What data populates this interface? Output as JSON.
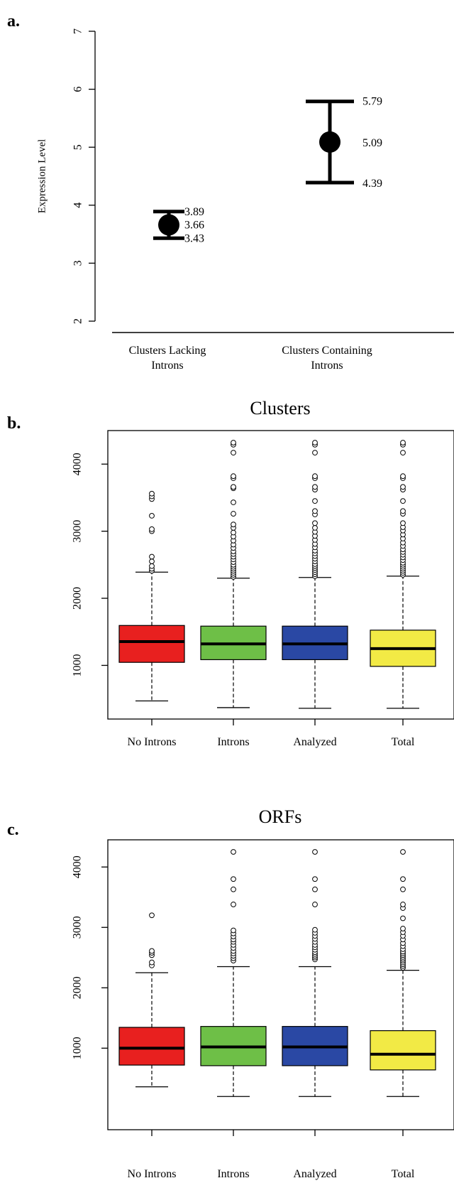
{
  "chart_data": [
    {
      "panel_label": "a.",
      "type": "scatter",
      "title": "",
      "xlabel": "",
      "ylabel": "Expression Level",
      "ylim": [
        2,
        7
      ],
      "yticks": [
        "2",
        "3",
        "4",
        "5",
        "6",
        "7"
      ],
      "categories": [
        [
          "Clusters Lacking",
          "Introns"
        ],
        [
          "Clusters Containing",
          "Introns"
        ]
      ],
      "points": [
        {
          "mean": 3.66,
          "lower": 3.43,
          "upper": 3.89,
          "labels": {
            "upper": "3.89",
            "mean": "3.66",
            "lower": "3.43"
          }
        },
        {
          "mean": 5.09,
          "lower": 4.39,
          "upper": 5.79,
          "labels": {
            "upper": "5.79",
            "mean": "5.09",
            "lower": "4.39"
          }
        }
      ],
      "grid": false,
      "legend": "none"
    },
    {
      "panel_label": "b.",
      "type": "boxplot",
      "title": "Clusters",
      "xlabel": "",
      "ylabel": "",
      "ylim": [
        200,
        4500
      ],
      "yticks": [
        "1000",
        "2000",
        "3000",
        "4000"
      ],
      "categories": [
        "No Introns",
        "Introns",
        "Analyzed",
        "Total"
      ],
      "colors": [
        "#e8201f",
        "#6ebf47",
        "#2a48a4",
        "#f2ea45"
      ],
      "boxes": [
        {
          "whisker_low": 470,
          "q1": 1045,
          "median": 1355,
          "q3": 1595,
          "whisker_high": 2390,
          "outliers": [
            2410,
            2440,
            2480,
            2550,
            2620,
            3000,
            3030,
            3230,
            3480,
            3520,
            3560
          ]
        },
        {
          "whisker_low": 370,
          "q1": 1085,
          "median": 1320,
          "q3": 1585,
          "whisker_high": 2300,
          "outliers": [
            2320,
            2350,
            2380,
            2410,
            2440,
            2470,
            2500,
            2540,
            2580,
            2620,
            2660,
            2700,
            2750,
            2800,
            2860,
            2920,
            2980,
            3050,
            3100,
            3260,
            3430,
            3640,
            3660,
            3790,
            3820,
            4170,
            4290,
            4320
          ]
        },
        {
          "whisker_low": 360,
          "q1": 1085,
          "median": 1320,
          "q3": 1585,
          "whisker_high": 2310,
          "outliers": [
            2330,
            2360,
            2390,
            2420,
            2450,
            2480,
            2510,
            2550,
            2590,
            2630,
            2670,
            2710,
            2760,
            2810,
            2870,
            2930,
            2990,
            3050,
            3120,
            3250,
            3300,
            3450,
            3620,
            3660,
            3790,
            3820,
            4170,
            4290,
            4320
          ]
        },
        {
          "whisker_low": 360,
          "q1": 985,
          "median": 1250,
          "q3": 1525,
          "whisker_high": 2330,
          "outliers": [
            2350,
            2380,
            2410,
            2440,
            2470,
            2500,
            2530,
            2570,
            2610,
            2650,
            2690,
            2730,
            2780,
            2830,
            2890,
            2950,
            3010,
            3060,
            3120,
            3260,
            3300,
            3450,
            3620,
            3660,
            3790,
            3820,
            4170,
            4290,
            4320
          ]
        }
      ],
      "grid": false,
      "legend": "none"
    },
    {
      "panel_label": "c.",
      "type": "boxplot",
      "title": "ORFs",
      "xlabel": "",
      "ylabel": "",
      "ylim": [
        -350,
        4450
      ],
      "yticks": [
        "1000",
        "2000",
        "3000",
        "4000"
      ],
      "categories": [
        "No Introns",
        "Introns",
        "Analyzed",
        "Total"
      ],
      "colors": [
        "#e8201f",
        "#6ebf47",
        "#2a48a4",
        "#f2ea45"
      ],
      "boxes": [
        {
          "whisker_low": 360,
          "q1": 720,
          "median": 1000,
          "q3": 1345,
          "whisker_high": 2250,
          "outliers": [
            2370,
            2420,
            2540,
            2580,
            2610,
            3200
          ]
        },
        {
          "whisker_low": 200,
          "q1": 710,
          "median": 1020,
          "q3": 1360,
          "whisker_high": 2350,
          "outliers": [
            2450,
            2490,
            2530,
            2570,
            2610,
            2660,
            2710,
            2760,
            2800,
            2850,
            2900,
            2950,
            3380,
            3630,
            3800,
            4250
          ]
        },
        {
          "whisker_low": 200,
          "q1": 710,
          "median": 1020,
          "q3": 1360,
          "whisker_high": 2350,
          "outliers": [
            2470,
            2500,
            2530,
            2560,
            2590,
            2630,
            2670,
            2710,
            2760,
            2810,
            2860,
            2910,
            2960,
            3380,
            3630,
            3800,
            4250
          ]
        },
        {
          "whisker_low": 200,
          "q1": 640,
          "median": 900,
          "q3": 1290,
          "whisker_high": 2290,
          "outliers": [
            2330,
            2360,
            2390,
            2420,
            2450,
            2480,
            2510,
            2540,
            2570,
            2600,
            2640,
            2690,
            2740,
            2800,
            2860,
            2920,
            2980,
            3150,
            3320,
            3380,
            3630,
            3800,
            4250
          ]
        }
      ],
      "grid": false,
      "legend": "none"
    }
  ]
}
